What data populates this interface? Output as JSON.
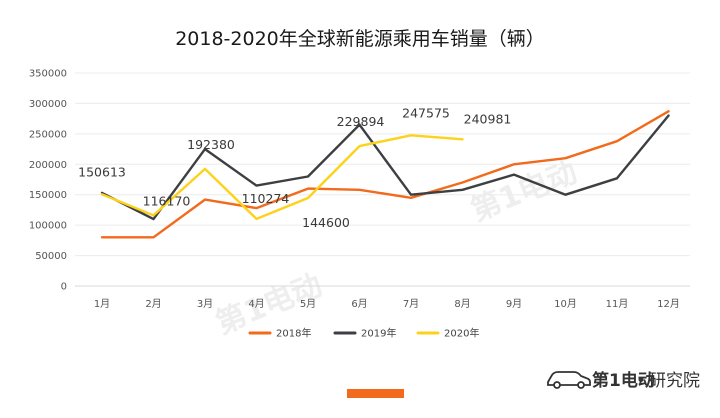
{
  "colors": {
    "series_2018": "#f26a1b",
    "series_2019": "#3d3f42",
    "series_2020": "#fdd21a",
    "gridline": "#ececec",
    "axis": "#d9d9d9",
    "accent_bar": "#f26a1b"
  },
  "brand": {
    "logo_text": "第1电动",
    "dot": "•",
    "suffix": "研究院",
    "watermark_text": "第1电动"
  },
  "chart_data": {
    "type": "line",
    "title": "2018-2020年全球新能源乘用车销量（辆）",
    "xlabel": "",
    "ylabel": "",
    "categories": [
      "1月",
      "2月",
      "3月",
      "4月",
      "5月",
      "6月",
      "7月",
      "8月",
      "9月",
      "10月",
      "11月",
      "12月"
    ],
    "ylim": [
      0,
      350000
    ],
    "yticks": [
      "350000",
      "300000",
      "250000",
      "200000",
      "150000",
      "100000",
      "50000",
      "0"
    ],
    "grid": true,
    "legend_position": "bottom",
    "series": [
      {
        "name": "2018年",
        "color": "#f26a1b",
        "values": [
          80000,
          80000,
          142000,
          128000,
          160000,
          158000,
          145000,
          170000,
          200000,
          210000,
          238000,
          287000
        ]
      },
      {
        "name": "2019年",
        "color": "#3d3f42",
        "values": [
          153000,
          110000,
          225000,
          165000,
          180000,
          265000,
          150000,
          158000,
          183000,
          150000,
          177000,
          280000
        ]
      },
      {
        "name": "2020年",
        "color": "#fdd21a",
        "values": [
          150613,
          116170,
          192380,
          110274,
          144600,
          229894,
          247575,
          240981,
          null,
          null,
          null,
          null
        ]
      }
    ],
    "data_labels": [
      "150613",
      "116170",
      "192380",
      "110274",
      "144600",
      "229894",
      "247575",
      "240981"
    ]
  }
}
